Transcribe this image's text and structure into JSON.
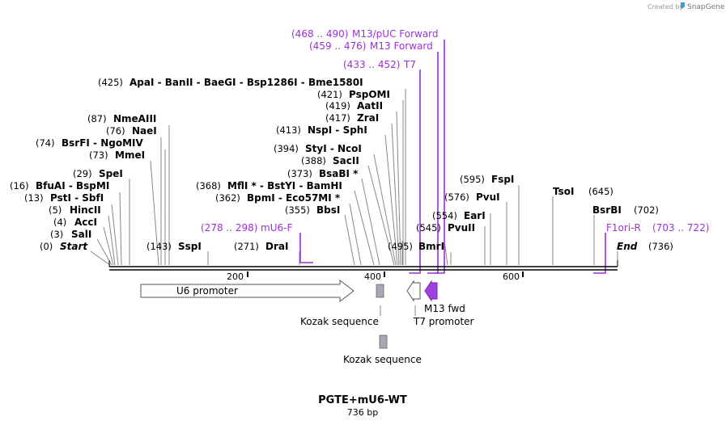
{
  "header": {
    "credit_prefix": "Created by",
    "credit_brand": "SnapGene",
    "brand_icon": "snapgene-logo-icon"
  },
  "construct": {
    "name": "PGTE+mU6-WT",
    "length": "736 bp"
  },
  "ruler": {
    "ticks": [
      "200",
      "400",
      "600"
    ]
  },
  "sites_left": [
    {
      "pos": "(425)",
      "label": "ApaI  -  BanII  -  BaeGI  - Bsp1286I  - Bme1580I"
    },
    {
      "pos": "(87)",
      "label": "NmeAIII"
    },
    {
      "pos": "(76)",
      "label": "NaeI"
    },
    {
      "pos": "(74)",
      "label": "BsrFI  - NgoMIV"
    },
    {
      "pos": "(73)",
      "label": "MmeI"
    },
    {
      "pos": "(29)",
      "label": "SpeI"
    },
    {
      "pos": "(16)",
      "label": "BfuAI  - BspMI"
    },
    {
      "pos": "(13)",
      "label": "PstI  - SbfI"
    },
    {
      "pos": "(5)",
      "label": "HincII"
    },
    {
      "pos": "(4)",
      "label": "AccI"
    },
    {
      "pos": "(3)",
      "label": "SalI"
    },
    {
      "pos": "(0)",
      "label": "Start"
    },
    {
      "pos": "(143)",
      "label": "SspI"
    },
    {
      "pos": "(271)",
      "label": "DraI"
    },
    {
      "pos": "(421)",
      "label": "PspOMI"
    },
    {
      "pos": "(419)",
      "label": "AatII"
    },
    {
      "pos": "(417)",
      "label": "ZraI"
    },
    {
      "pos": "(413)",
      "label": "NspI  - SphI"
    },
    {
      "pos": "(394)",
      "label": "StyI  - NcoI"
    },
    {
      "pos": "(388)",
      "label": "SacII"
    },
    {
      "pos": "(373)",
      "label": "BsaBI *"
    },
    {
      "pos": "(368)",
      "label": "MflI * - BstYI  - BamHI"
    },
    {
      "pos": "(362)",
      "label": "BpmI  - Eco57MI *"
    },
    {
      "pos": "(355)",
      "label": "BbsI"
    }
  ],
  "sites_right": [
    {
      "pos": "(595)",
      "label": "FspI"
    },
    {
      "pos": "(576)",
      "label": "PvuI"
    },
    {
      "pos": "(554)",
      "label": "EarI"
    },
    {
      "pos": "(545)",
      "label": "PvuII"
    },
    {
      "pos": "(495)",
      "label": "BmrI"
    },
    {
      "pos": "(645)",
      "label": "TsoI"
    },
    {
      "pos": "(702)",
      "label": "BsrBI"
    },
    {
      "pos": "(736)",
      "label": "End"
    }
  ],
  "primers": [
    {
      "range": "(468 .. 490)",
      "label": "M13/pUC Forward"
    },
    {
      "range": "(459 .. 476)",
      "label": "M13 Forward"
    },
    {
      "range": "(433 .. 452)",
      "label": "T7"
    },
    {
      "range": "(278 .. 298)",
      "label": "mU6-F"
    },
    {
      "range": "(703 .. 722)",
      "label": "F1ori-R"
    }
  ],
  "features": [
    {
      "label": "U6 promoter"
    },
    {
      "label": "Kozak sequence"
    },
    {
      "label": "Kozak sequence"
    },
    {
      "label": "M13 fwd"
    },
    {
      "label": "T7 promoter"
    }
  ],
  "colors": {
    "primer": "#9b30d9",
    "feature_gray": "#a6a9b3",
    "m13_fill": "#a040e0"
  }
}
